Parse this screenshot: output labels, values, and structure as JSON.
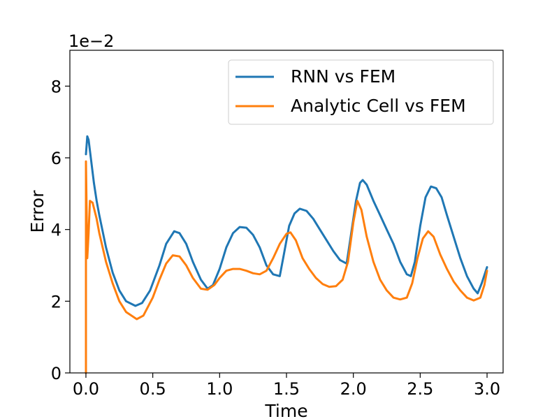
{
  "chart_data": {
    "type": "line",
    "title": "",
    "xlabel": "Time",
    "ylabel": "Error",
    "y_scale_text": "1e−2",
    "xlim": [
      -0.12,
      3.12
    ],
    "ylim": [
      0,
      9
    ],
    "x_ticks": [
      0.0,
      0.5,
      1.0,
      1.5,
      2.0,
      2.5,
      3.0
    ],
    "x_tick_labels": [
      "0.0",
      "0.5",
      "1.0",
      "1.5",
      "2.0",
      "2.5",
      "3.0"
    ],
    "y_ticks": [
      0,
      2,
      4,
      6,
      8
    ],
    "y_tick_labels": [
      "0",
      "2",
      "4",
      "6",
      "8"
    ],
    "grid": false,
    "legend_position": "top-right",
    "series": [
      {
        "name": "RNN vs FEM",
        "color": "#1f77b4",
        "points": [
          [
            0.0,
            6.1
          ],
          [
            0.01,
            6.6
          ],
          [
            0.02,
            6.5
          ],
          [
            0.04,
            5.9
          ],
          [
            0.06,
            5.3
          ],
          [
            0.08,
            4.8
          ],
          [
            0.1,
            4.4
          ],
          [
            0.15,
            3.5
          ],
          [
            0.2,
            2.8
          ],
          [
            0.25,
            2.3
          ],
          [
            0.3,
            2.0
          ],
          [
            0.37,
            1.87
          ],
          [
            0.42,
            1.95
          ],
          [
            0.48,
            2.3
          ],
          [
            0.55,
            3.0
          ],
          [
            0.6,
            3.6
          ],
          [
            0.66,
            3.95
          ],
          [
            0.7,
            3.9
          ],
          [
            0.75,
            3.6
          ],
          [
            0.8,
            3.1
          ],
          [
            0.86,
            2.6
          ],
          [
            0.91,
            2.35
          ],
          [
            0.95,
            2.45
          ],
          [
            1.0,
            2.9
          ],
          [
            1.05,
            3.5
          ],
          [
            1.1,
            3.9
          ],
          [
            1.15,
            4.07
          ],
          [
            1.2,
            4.05
          ],
          [
            1.25,
            3.85
          ],
          [
            1.3,
            3.5
          ],
          [
            1.35,
            3.0
          ],
          [
            1.4,
            2.75
          ],
          [
            1.45,
            2.7
          ],
          [
            1.48,
            3.3
          ],
          [
            1.52,
            4.1
          ],
          [
            1.56,
            4.45
          ],
          [
            1.6,
            4.58
          ],
          [
            1.65,
            4.52
          ],
          [
            1.7,
            4.3
          ],
          [
            1.75,
            4.0
          ],
          [
            1.8,
            3.7
          ],
          [
            1.85,
            3.4
          ],
          [
            1.9,
            3.15
          ],
          [
            1.95,
            3.05
          ],
          [
            1.98,
            3.8
          ],
          [
            2.02,
            4.8
          ],
          [
            2.05,
            5.3
          ],
          [
            2.07,
            5.38
          ],
          [
            2.1,
            5.25
          ],
          [
            2.15,
            4.8
          ],
          [
            2.2,
            4.4
          ],
          [
            2.25,
            4.0
          ],
          [
            2.3,
            3.6
          ],
          [
            2.35,
            3.1
          ],
          [
            2.4,
            2.75
          ],
          [
            2.43,
            2.7
          ],
          [
            2.46,
            3.1
          ],
          [
            2.5,
            4.1
          ],
          [
            2.54,
            4.9
          ],
          [
            2.58,
            5.2
          ],
          [
            2.62,
            5.15
          ],
          [
            2.66,
            4.9
          ],
          [
            2.7,
            4.4
          ],
          [
            2.75,
            3.8
          ],
          [
            2.8,
            3.2
          ],
          [
            2.85,
            2.7
          ],
          [
            2.9,
            2.35
          ],
          [
            2.93,
            2.22
          ],
          [
            2.96,
            2.5
          ],
          [
            3.0,
            2.95
          ]
        ]
      },
      {
        "name": "Analytic Cell vs FEM",
        "color": "#ff7f0e",
        "points": [
          [
            0.0,
            0.0
          ],
          [
            0.0,
            5.9
          ],
          [
            0.01,
            3.2
          ],
          [
            0.02,
            3.9
          ],
          [
            0.03,
            4.8
          ],
          [
            0.05,
            4.75
          ],
          [
            0.08,
            4.3
          ],
          [
            0.1,
            3.9
          ],
          [
            0.15,
            3.1
          ],
          [
            0.2,
            2.5
          ],
          [
            0.25,
            2.0
          ],
          [
            0.3,
            1.7
          ],
          [
            0.38,
            1.5
          ],
          [
            0.43,
            1.6
          ],
          [
            0.5,
            2.1
          ],
          [
            0.55,
            2.6
          ],
          [
            0.6,
            3.05
          ],
          [
            0.65,
            3.28
          ],
          [
            0.7,
            3.25
          ],
          [
            0.75,
            3.0
          ],
          [
            0.8,
            2.65
          ],
          [
            0.86,
            2.35
          ],
          [
            0.91,
            2.32
          ],
          [
            0.96,
            2.45
          ],
          [
            1.0,
            2.65
          ],
          [
            1.05,
            2.85
          ],
          [
            1.1,
            2.9
          ],
          [
            1.15,
            2.9
          ],
          [
            1.2,
            2.85
          ],
          [
            1.25,
            2.78
          ],
          [
            1.3,
            2.75
          ],
          [
            1.35,
            2.85
          ],
          [
            1.4,
            3.2
          ],
          [
            1.45,
            3.6
          ],
          [
            1.5,
            3.88
          ],
          [
            1.53,
            3.92
          ],
          [
            1.57,
            3.7
          ],
          [
            1.62,
            3.2
          ],
          [
            1.67,
            2.9
          ],
          [
            1.72,
            2.65
          ],
          [
            1.77,
            2.48
          ],
          [
            1.82,
            2.4
          ],
          [
            1.87,
            2.42
          ],
          [
            1.92,
            2.6
          ],
          [
            1.96,
            3.1
          ],
          [
            2.0,
            4.2
          ],
          [
            2.03,
            4.8
          ],
          [
            2.06,
            4.55
          ],
          [
            2.1,
            3.8
          ],
          [
            2.15,
            3.1
          ],
          [
            2.2,
            2.6
          ],
          [
            2.25,
            2.3
          ],
          [
            2.3,
            2.1
          ],
          [
            2.35,
            2.05
          ],
          [
            2.4,
            2.1
          ],
          [
            2.44,
            2.5
          ],
          [
            2.48,
            3.2
          ],
          [
            2.52,
            3.75
          ],
          [
            2.56,
            3.95
          ],
          [
            2.6,
            3.8
          ],
          [
            2.65,
            3.3
          ],
          [
            2.7,
            2.9
          ],
          [
            2.75,
            2.55
          ],
          [
            2.8,
            2.3
          ],
          [
            2.85,
            2.1
          ],
          [
            2.9,
            2.02
          ],
          [
            2.95,
            2.1
          ],
          [
            2.98,
            2.45
          ],
          [
            3.0,
            2.85
          ]
        ]
      }
    ]
  }
}
